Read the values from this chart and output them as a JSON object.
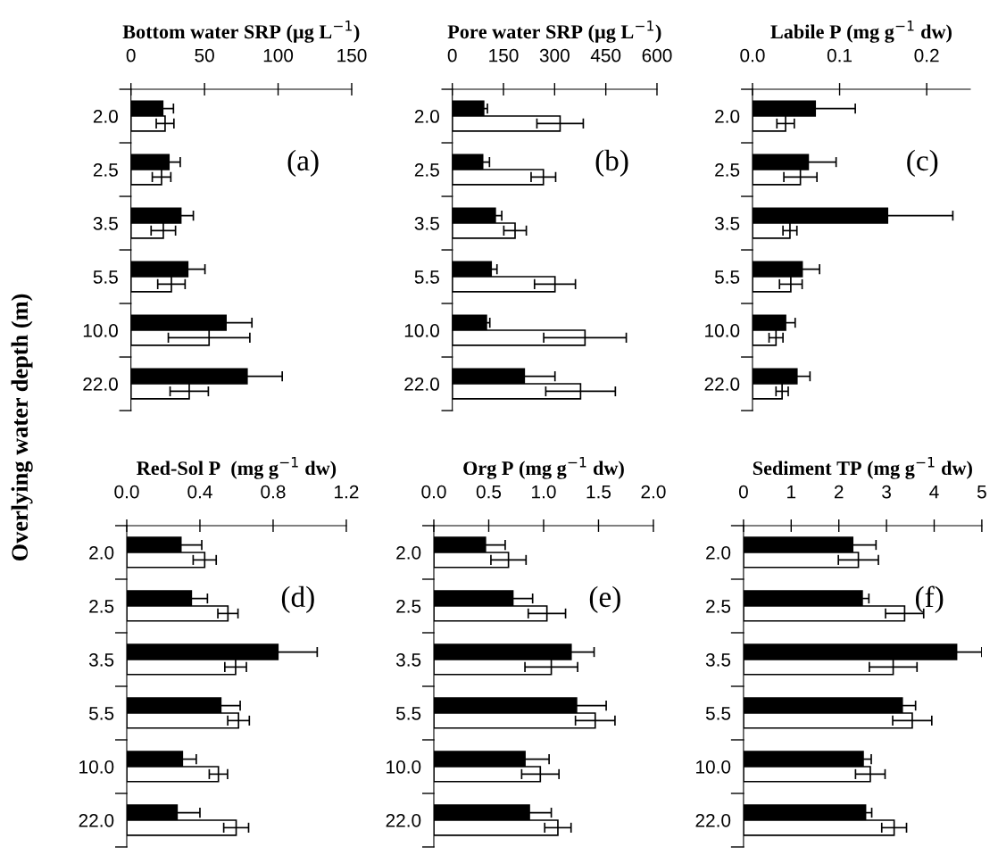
{
  "chart_data": [
    {
      "type": "bar",
      "orientation": "horizontal",
      "xlabel": "Bottom water SRP (µg L$^{−1}$)",
      "ylabel": "Overlying water depth (m)",
      "categories": [
        "2.0",
        "2.5",
        "3.5",
        "5.5",
        "10.0",
        "22.0"
      ],
      "xlim": [
        0,
        150
      ],
      "xticks": [
        0,
        50,
        100,
        150
      ],
      "annotations": [
        "(a)"
      ],
      "series": [
        {
          "color": "#000000",
          "values": [
            21.6,
            25.8,
            33.9,
            38.6,
            64.6,
            78.9
          ],
          "errors": [
            7.3,
            7.7,
            8.5,
            11.7,
            17.6,
            23.9
          ]
        },
        {
          "color": "#ffffff",
          "values": [
            23.2,
            20.8,
            22.0,
            27.5,
            53.1,
            39.6
          ],
          "errors": [
            6.0,
            6.3,
            8.3,
            9.3,
            27.7,
            13.0
          ]
        }
      ]
    },
    {
      "type": "bar",
      "orientation": "horizontal",
      "xlabel": "Pore water SRP (µg L$^{−1}$)",
      "categories": [
        "2.0",
        "2.5",
        "3.5",
        "5.5",
        "10.0",
        "22.0"
      ],
      "xlim": [
        0,
        600
      ],
      "xticks": [
        0,
        150,
        300,
        450,
        600
      ],
      "annotations": [
        "(b)"
      ],
      "series": [
        {
          "color": "#000000",
          "values": [
            92,
            89,
            126,
            114,
            100,
            211
          ],
          "errors": [
            11,
            20,
            19,
            17,
            10,
            90
          ]
        },
        {
          "color": "#ffffff",
          "values": [
            316,
            267,
            184,
            301,
            389,
            376
          ],
          "errors": [
            68,
            36,
            33,
            60,
            121,
            102
          ]
        }
      ]
    },
    {
      "type": "bar",
      "orientation": "horizontal",
      "xlabel": "Labile P (mg g$^{−1}$ dw)",
      "categories": [
        "2.0",
        "2.5",
        "3.5",
        "5.5",
        "10.0",
        "22.0"
      ],
      "xlim": [
        0,
        0.25
      ],
      "xticks": [
        {
          "value": 0,
          "label": "0.0"
        },
        0.1,
        0.2
      ],
      "annotations": [
        "(c)"
      ],
      "series": [
        {
          "color": "#000000",
          "values": [
            0.072,
            0.064,
            0.155,
            0.057,
            0.038,
            0.051
          ],
          "errors": [
            0.046,
            0.032,
            0.075,
            0.02,
            0.011,
            0.015
          ]
        },
        {
          "color": "#ffffff",
          "values": [
            0.038,
            0.055,
            0.043,
            0.044,
            0.027,
            0.034
          ],
          "errors": [
            0.01,
            0.019,
            0.008,
            0.013,
            0.008,
            0.007
          ]
        }
      ]
    },
    {
      "type": "bar",
      "orientation": "horizontal",
      "xlabel": "Red-Sol P  (mg g$^{−1}$ dw)",
      "categories": [
        "2.0",
        "2.5",
        "3.5",
        "5.5",
        "10.0",
        "22.0"
      ],
      "xlim": [
        0,
        1.2
      ],
      "xticks": [
        {
          "value": 0,
          "label": "0.0"
        },
        0.4,
        0.8,
        1.2
      ],
      "annotations": [
        "(d)"
      ],
      "series": [
        {
          "color": "#000000",
          "values": [
            0.296,
            0.353,
            0.826,
            0.514,
            0.304,
            0.275
          ],
          "errors": [
            0.114,
            0.088,
            0.215,
            0.106,
            0.076,
            0.125
          ]
        },
        {
          "color": "#ffffff",
          "values": [
            0.426,
            0.553,
            0.595,
            0.611,
            0.501,
            0.598
          ],
          "errors": [
            0.063,
            0.055,
            0.059,
            0.059,
            0.05,
            0.068
          ]
        }
      ]
    },
    {
      "type": "bar",
      "orientation": "horizontal",
      "xlabel": "Org P (mg g$^{−1}$ dw)",
      "categories": [
        "2.0",
        "2.5",
        "3.5",
        "5.5",
        "10.0",
        "22.0"
      ],
      "xlim": [
        0,
        2.0
      ],
      "xticks": [
        {
          "value": 0,
          "label": "0.0"
        },
        0.5,
        {
          "value": 1,
          "label": "1.0"
        },
        1.5,
        {
          "value": 2,
          "label": "2.0"
        }
      ],
      "annotations": [
        "(e)"
      ],
      "series": [
        {
          "color": "#000000",
          "values": [
            0.47,
            0.72,
            1.25,
            1.3,
            0.83,
            0.87
          ],
          "errors": [
            0.18,
            0.18,
            0.21,
            0.27,
            0.22,
            0.2
          ]
        },
        {
          "color": "#ffffff",
          "values": [
            0.68,
            1.03,
            1.07,
            1.47,
            0.97,
            1.13
          ],
          "errors": [
            0.16,
            0.17,
            0.24,
            0.18,
            0.17,
            0.12
          ]
        }
      ]
    },
    {
      "type": "bar",
      "orientation": "horizontal",
      "xlabel": "Sediment TP (mg g$^{−1}$ dw)",
      "categories": [
        "2.0",
        "2.5",
        "3.5",
        "5.5",
        "10.0",
        "22.0"
      ],
      "xlim": [
        0,
        5
      ],
      "xticks": [
        0,
        1,
        2,
        3,
        4,
        5
      ],
      "annotations": [
        "(f)"
      ],
      "series": [
        {
          "color": "#000000",
          "values": [
            2.29,
            2.49,
            4.47,
            3.33,
            2.51,
            2.56
          ],
          "errors": [
            0.49,
            0.14,
            0.53,
            0.28,
            0.17,
            0.13
          ]
        },
        {
          "color": "#ffffff",
          "values": [
            2.41,
            3.38,
            3.14,
            3.54,
            2.66,
            3.16
          ],
          "errors": [
            0.42,
            0.4,
            0.5,
            0.41,
            0.31,
            0.26
          ]
        }
      ]
    }
  ]
}
